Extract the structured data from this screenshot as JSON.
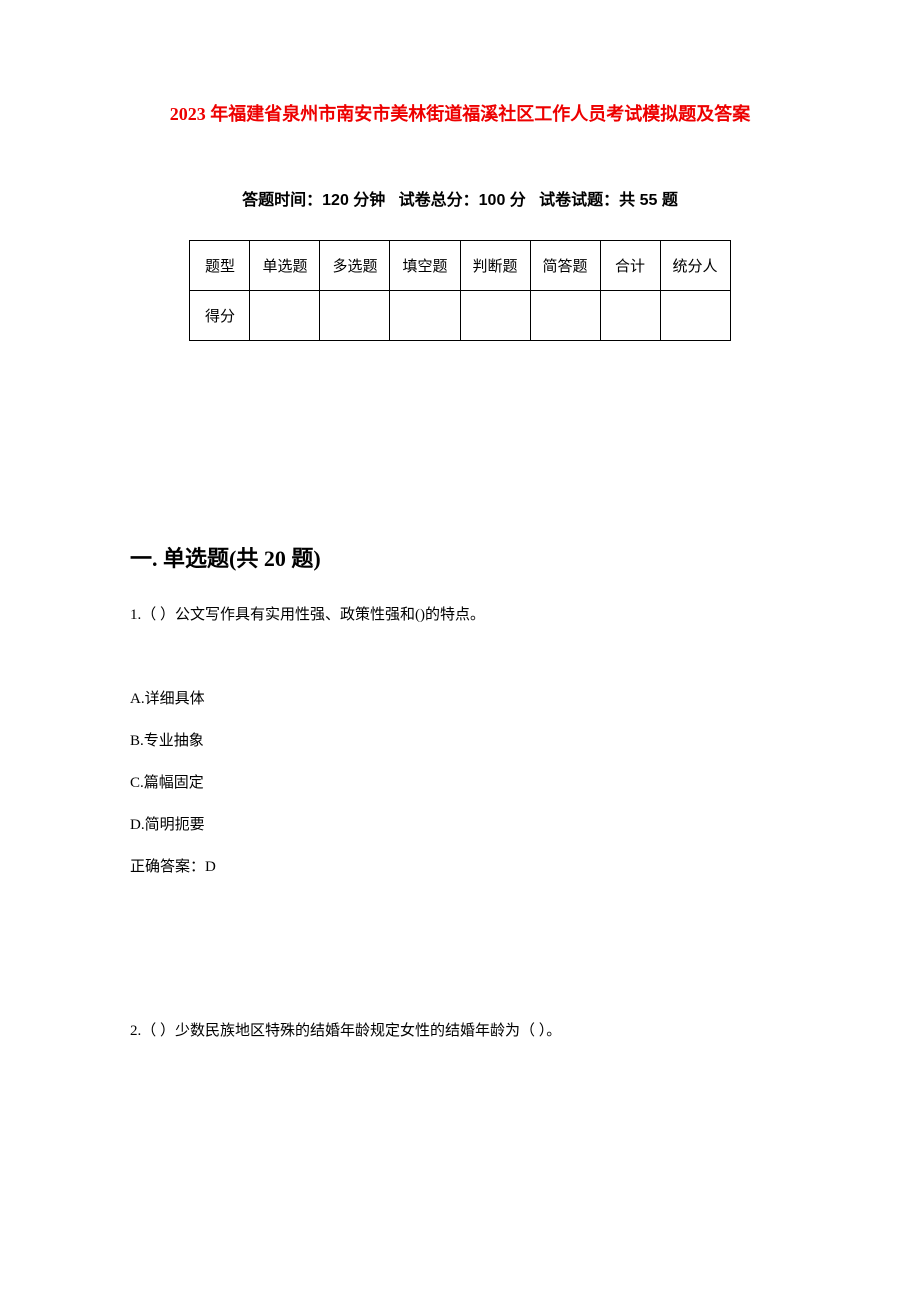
{
  "title": "2023 年福建省泉州市南安市美林街道福溪社区工作人员考试模拟题及答案",
  "examInfo": {
    "timeLabel": "答题时间：",
    "timeValue": "120 分钟",
    "totalScoreLabel": "试卷总分：",
    "totalScoreValue": "100 分",
    "questionCountLabel": "试卷试题：",
    "questionCountValue": "共 55 题"
  },
  "scoreTable": {
    "headers": [
      "题型",
      "单选题",
      "多选题",
      "填空题",
      "判断题",
      "简答题",
      "合计",
      "统分人"
    ],
    "rowLabel": "得分"
  },
  "section": {
    "heading": "一. 单选题(共 20 题)"
  },
  "questions": {
    "q1": {
      "text": "1.（ ）公文写作具有实用性强、政策性强和()的特点。",
      "optionA": "A.详细具体",
      "optionB": "B.专业抽象",
      "optionC": "C.篇幅固定",
      "optionD": "D.简明扼要",
      "answer": "正确答案：D"
    },
    "q2": {
      "text": "2.（ ）少数民族地区特殊的结婚年龄规定女性的结婚年龄为（ ）。"
    }
  },
  "colors": {
    "titleColor": "#ed0000",
    "textColor": "#000000",
    "backgroundColor": "#ffffff",
    "borderColor": "#000000"
  },
  "typography": {
    "titleFontSize": 18,
    "examInfoFontSize": 16,
    "sectionHeadingFontSize": 22,
    "bodyFontSize": 15
  }
}
